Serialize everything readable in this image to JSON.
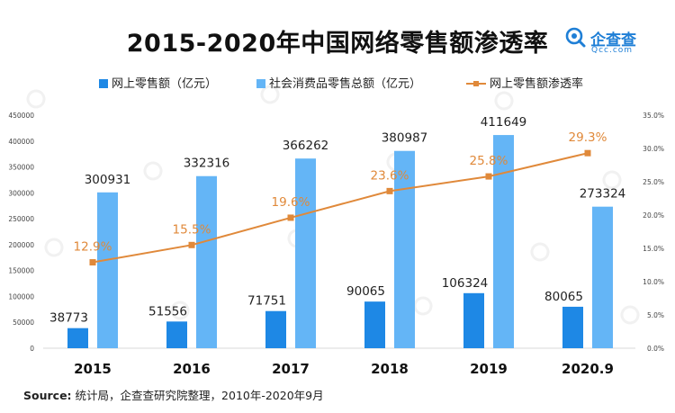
{
  "title": "2015-2020年中国网络零售额渗透率",
  "logo": {
    "name": "企查查",
    "domain": "Qcc.com"
  },
  "legend": {
    "online": "网上零售额（亿元）",
    "total": "社会消费品零售总额（亿元）",
    "rate": "网上零售额渗透率"
  },
  "source": {
    "label": "Source:",
    "text": "统计局，企查查研究院整理，2010年-2020年9月"
  },
  "colors": {
    "online": "#1e88e5",
    "total": "#64b5f6",
    "rate": "#e0893a",
    "rate_label": "#e0893a",
    "logo": "#1f7fd6"
  },
  "chart_data": {
    "type": "bar",
    "categories": [
      "2015",
      "2016",
      "2017",
      "2018",
      "2019",
      "2020.9"
    ],
    "series": [
      {
        "name": "网上零售额（亿元）",
        "type": "bar",
        "axis": "left",
        "values": [
          38773,
          51556,
          71751,
          90065,
          106324,
          80065
        ]
      },
      {
        "name": "社会消费品零售总额（亿元）",
        "type": "bar",
        "axis": "left",
        "values": [
          300931,
          332316,
          366262,
          380987,
          411649,
          273324
        ]
      },
      {
        "name": "网上零售额渗透率",
        "type": "line",
        "axis": "right",
        "values": [
          12.9,
          15.5,
          19.6,
          23.6,
          25.8,
          29.3
        ],
        "labels": [
          "12.9%",
          "15.5%",
          "19.6%",
          "23.6%",
          "25.8%",
          "29.3%"
        ]
      }
    ],
    "left_axis": {
      "ylim": [
        0,
        450000
      ],
      "ticks": [
        0,
        50000,
        100000,
        150000,
        200000,
        250000,
        300000,
        350000,
        400000,
        450000
      ],
      "tick_labels": [
        "0",
        "50000",
        "100000",
        "150000",
        "200000",
        "250000",
        "300000",
        "350000",
        "400000",
        "450000"
      ]
    },
    "right_axis": {
      "ylim": [
        0,
        35
      ],
      "ticks": [
        0,
        5,
        10,
        15,
        20,
        25,
        30,
        35
      ],
      "tick_labels": [
        "0.0%",
        "5.0%",
        "10.0%",
        "15.0%",
        "20.0%",
        "25.0%",
        "30.0%",
        "35.0%"
      ]
    },
    "grid": false,
    "legend_position": "top"
  }
}
